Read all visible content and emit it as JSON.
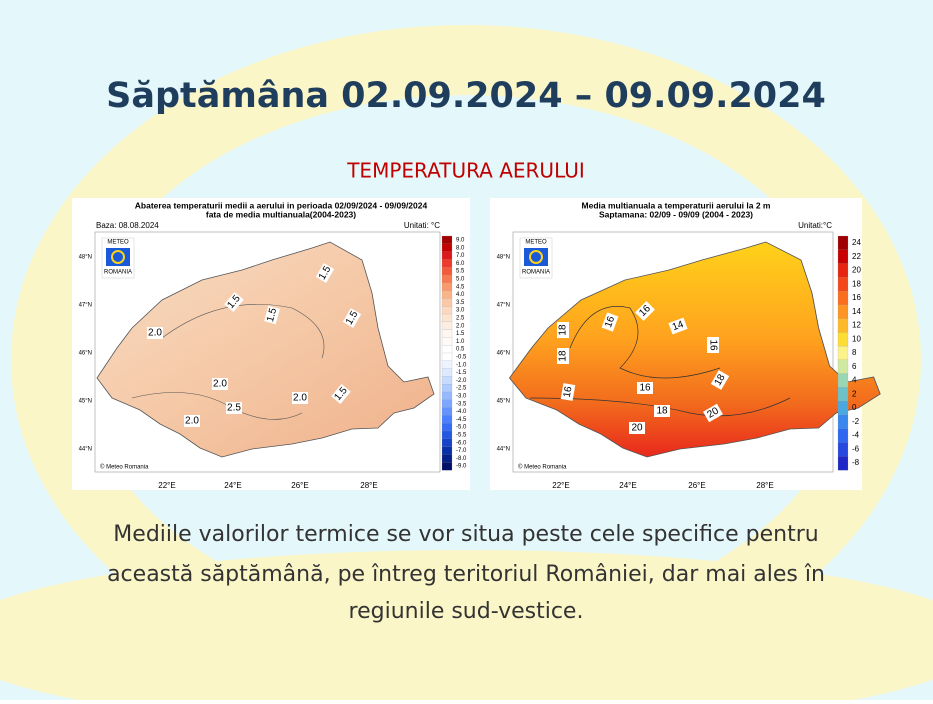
{
  "title": "Săptămâna 02.09.2024 – 09.09.2024",
  "subtitle": "TEMPERATURA AERULUI",
  "maps": [
    {
      "title": [
        "Abaterea temperaturii medii a aerului in perioada 02/09/2024 - 09/09/2024",
        "fata de media multianuala(2004-2023)"
      ],
      "base": "Baza: 08.08.2024",
      "units": "Unitati: °C",
      "logo": [
        "METEO",
        "ROMANIA"
      ],
      "credit": "© Meteo Romania",
      "colorbar": [
        "9.0",
        "8.0",
        "7.0",
        "6.0",
        "5.5",
        "5.0",
        "4.5",
        "4.0",
        "3.5",
        "3.0",
        "2.5",
        "2.0",
        "1.5",
        "1.0",
        "0.5",
        "-0.5",
        "-1.0",
        "-1.5",
        "-2.0",
        "-2.5",
        "-3.0",
        "-3.5",
        "-4.0",
        "-4.5",
        "-5.0",
        "-5.5",
        "-6.0",
        "-7.0",
        "-8.0",
        "-9.0"
      ],
      "lat": [
        "48°N",
        "47°N",
        "46°N",
        "45°N",
        "44°N"
      ],
      "lon": [
        "22°E",
        "24°E",
        "26°E",
        "28°E"
      ],
      "contours": [
        "1.5",
        "1.5",
        "1.5",
        "1.5",
        "2.0",
        "2.0",
        "2.0",
        "1.5",
        "2.5",
        "2.0"
      ]
    },
    {
      "title": [
        "Media multianuala a temperaturii aerului la 2 m",
        "Saptamana: 02/09 - 09/09 (2004 - 2023)"
      ],
      "units": "Unitati:°C",
      "logo": [
        "METEO",
        "ROMANIA"
      ],
      "credit": "© Meteo Romania",
      "colorbar": [
        "24",
        "22",
        "20",
        "18",
        "16",
        "14",
        "12",
        "10",
        "8",
        "6",
        "4",
        "2",
        "0",
        "-2",
        "-4",
        "-6",
        "-8"
      ],
      "lat": [
        "48°N",
        "47°N",
        "46°N",
        "45°N",
        "44°N"
      ],
      "lon": [
        "22°E",
        "24°E",
        "26°E",
        "28°E"
      ],
      "contours": [
        "18",
        "18",
        "16",
        "16",
        "16",
        "14",
        "16",
        "18",
        "16",
        "18",
        "20",
        "20"
      ]
    }
  ],
  "text": [
    "Mediile valorilor termice se vor situa peste cele specifice pentru",
    "această săptămână, pe întreg teritoriul României, dar mai ales în",
    "regiunile sud-vestice."
  ]
}
